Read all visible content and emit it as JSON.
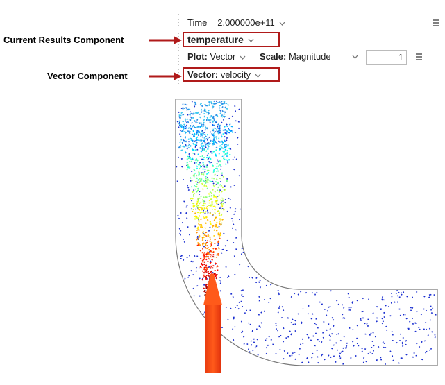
{
  "annotations": {
    "current_results_component": "Current Results Component",
    "vector_component": "Vector Component"
  },
  "toolbar": {
    "time": "Time = 2.000000e+11",
    "result": "temperature",
    "plot_label": "Plot:",
    "plot_value": "Vector",
    "scale_label": "Scale:",
    "scale_value": "Magnitude",
    "scale_factor": 1,
    "vector_label": "Vector:",
    "vector_value": "velocity"
  }
}
